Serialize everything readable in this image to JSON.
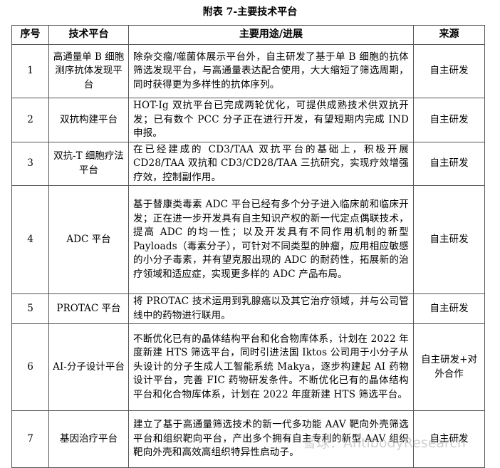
{
  "title": "附表 7-主要技术平台",
  "headers": [
    "序号",
    "技术平台",
    "主要用途/进展",
    "来源"
  ],
  "rows": [
    {
      "no": "1",
      "platform": "高通量单 B 细胞测序抗体发现平台",
      "desc": "除杂交瘤/噬菌体展示平台外，自主研发了基于单 B 细胞的抗体筛选发现平台，与高通量表达配合使用，大大缩短了筛选周期，同时获得更为多样性的抗体序列。",
      "source": "自主研发"
    },
    {
      "no": "2",
      "platform": "双抗构建平台",
      "desc": "HOT-Ig 双抗平台已完成两轮优化，可提供成熟技术供双抗开发；已有数个 PCC 分子正在进行开发，有望短期内完成 IND 申报。",
      "source": "自主研发"
    },
    {
      "no": "3",
      "platform": "双抗-T 细胞疗法平台",
      "desc": "在已经建成的 CD3/TAA 双抗平台的基础上，积极开展 CD28/TAA 双抗和 CD3/CD28/TAA 三抗研究，实现疗效增强疗效，控制副作用。",
      "source": "自主研发"
    },
    {
      "no": "4",
      "platform": "ADC 平台",
      "desc": "基于替康类毒素 ADC 平台已经有多个分子进入临床前和临床开发；正在进一步开发具有自主知识产权的新一代定点偶联技术，提高 ADC 的均一性；以及开发具有不同作用机制的新型 Payloads（毒素分子），可针对不同类型的肿瘤，应用相应敏感的小分子毒素，并有望克服出现的 ADC 的耐药性，拓展新的治疗领域和适应症，实现更多样的 ADC 产品布局。",
      "source": "自主研发"
    },
    {
      "no": "5",
      "platform": "PROTAC 平台",
      "desc": "将 PROTAC 技术运用到乳腺癌以及其它治疗领域，并与公司管线中的药物进行联用。",
      "source": "自主研发"
    },
    {
      "no": "6",
      "platform": "AI-分子设计平台",
      "desc": "不断优化已有的晶体结构平台和化合物库体系，计划在 2022 年度新建 HTS 筛选平台，同时引进法国 Iktos 公司用于小分子从头设计的分子生成人工智能系统 Makya，逐步构建起 AI 药物设计平台，完善 FIC 药物研发条件。不断优化已有的晶体结构平台和化合物库体系，计划在 2022 年度新建 HTS 筛选平台。",
      "source": "自主研发+对外合作"
    },
    {
      "no": "7",
      "platform": "基因治疗平台",
      "desc": "建立了基于高通量筛选技术的新一代多功能 AAV 靶向外壳筛选平台和组织靶向平台，产出多个拥有自主专利的新型 AAV 组织靶向外壳和高效高组织特异性启动子。",
      "source": "自主研发"
    }
  ],
  "watermark": "雪球：AntibodyResearch"
}
